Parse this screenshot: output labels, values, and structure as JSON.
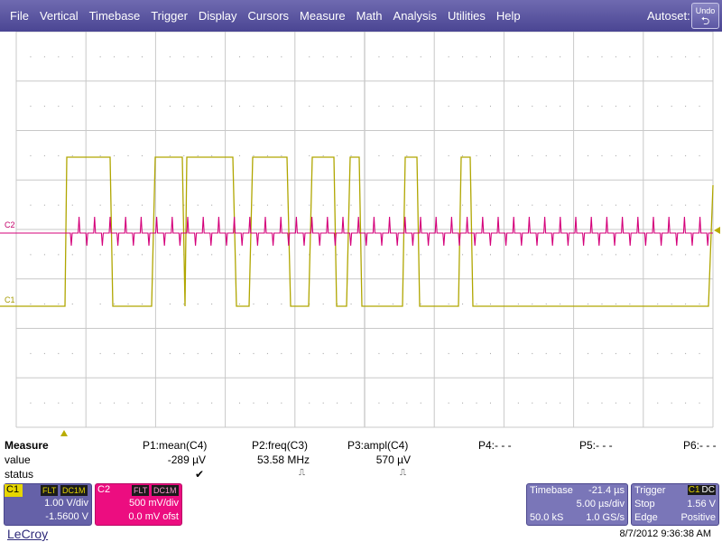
{
  "menu": [
    "File",
    "Vertical",
    "Timebase",
    "Trigger",
    "Display",
    "Cursors",
    "Measure",
    "Math",
    "Analysis",
    "Utilities",
    "Help"
  ],
  "autoset_label": "Autoset:",
  "undo_label": "Undo",
  "undo_icon": "undo-arrow",
  "traces": {
    "c1": {
      "label": "C1",
      "color": "#b0a600"
    },
    "c2": {
      "label": "C2",
      "color": "#d4007a"
    }
  },
  "measure": {
    "title": "Measure",
    "row_labels": [
      "value",
      "status"
    ],
    "params": [
      {
        "name": "P1:mean(C4)",
        "value": "-289 µV",
        "status": "✔"
      },
      {
        "name": "P2:freq(C3)",
        "value": "53.58 MHz",
        "status": "⎍"
      },
      {
        "name": "P3:ampl(C4)",
        "value": "570 µV",
        "status": "⎍"
      },
      {
        "name": "P4:- - -",
        "value": "",
        "status": ""
      },
      {
        "name": "P5:- - -",
        "value": "",
        "status": ""
      },
      {
        "name": "P6:- - -",
        "value": "",
        "status": ""
      }
    ]
  },
  "c1": {
    "name": "C1",
    "tag1": "FLT",
    "tag2": "DC1M",
    "vdiv": "1.00 V/div",
    "offset": "-1.5600 V"
  },
  "c2": {
    "name": "C2",
    "tag1": "FLT",
    "tag2": "DC1M",
    "vdiv": "500 mV/div",
    "offset": "0.0 mV ofst"
  },
  "timebase": {
    "label": "Timebase",
    "delay": "-21.4 µs",
    "tdiv": "5.00 µs/div",
    "samples": "50.0 kS",
    "rate": "1.0 GS/s"
  },
  "trigger": {
    "label": "Trigger",
    "src1": "C1",
    "src2": "DC",
    "mode": "Stop",
    "level": "1.56 V",
    "type": "Edge",
    "slope": "Positive"
  },
  "brand": "LeCroy",
  "timestamp": "8/7/2012 9:36:38 AM"
}
